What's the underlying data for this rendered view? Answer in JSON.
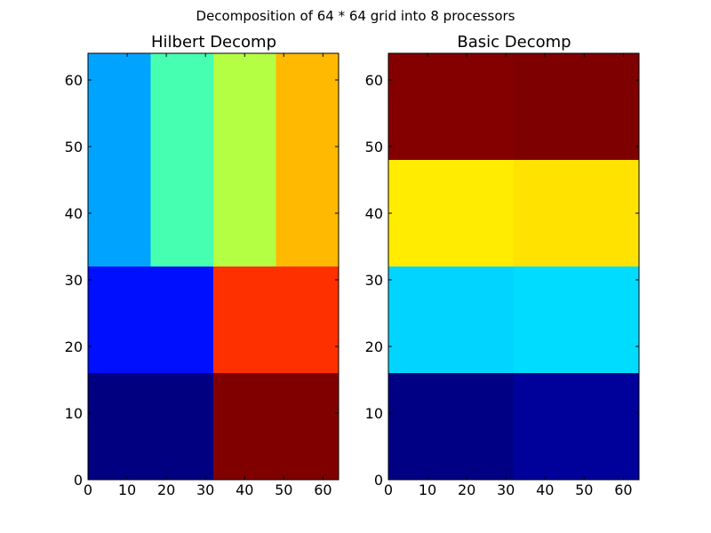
{
  "figure": {
    "suptitle": "Decomposition of 64 * 64 grid into 8 processors"
  },
  "chart_data": [
    {
      "type": "heatmap",
      "title": "Hilbert Decomp",
      "xlim": [
        0,
        64
      ],
      "ylim": [
        0,
        64
      ],
      "xticks": [
        "0",
        "10",
        "20",
        "30",
        "40",
        "50",
        "60"
      ],
      "yticks": [
        "0",
        "10",
        "20",
        "30",
        "40",
        "50",
        "60"
      ],
      "grid": false,
      "regions": [
        {
          "x": [
            0,
            32
          ],
          "y": [
            0,
            16
          ],
          "color": "#000080"
        },
        {
          "x": [
            32,
            64
          ],
          "y": [
            0,
            16
          ],
          "color": "#800000"
        },
        {
          "x": [
            0,
            32
          ],
          "y": [
            16,
            32
          ],
          "color": "#0010ff"
        },
        {
          "x": [
            32,
            64
          ],
          "y": [
            16,
            32
          ],
          "color": "#ff3000"
        },
        {
          "x": [
            0,
            16
          ],
          "y": [
            32,
            64
          ],
          "color": "#00a4ff"
        },
        {
          "x": [
            16,
            32
          ],
          "y": [
            32,
            64
          ],
          "color": "#46ffb1"
        },
        {
          "x": [
            32,
            48
          ],
          "y": [
            32,
            64
          ],
          "color": "#b4ff43"
        },
        {
          "x": [
            48,
            64
          ],
          "y": [
            32,
            64
          ],
          "color": "#ffb900"
        }
      ]
    },
    {
      "type": "heatmap",
      "title": "Basic Decomp",
      "xlim": [
        0,
        64
      ],
      "ylim": [
        0,
        64
      ],
      "xticks": [
        "0",
        "10",
        "20",
        "30",
        "40",
        "50",
        "60"
      ],
      "yticks": [
        "0",
        "10",
        "20",
        "30",
        "40",
        "50",
        "60"
      ],
      "grid": false,
      "regions": [
        {
          "x": [
            0,
            32
          ],
          "y": [
            0,
            16
          ],
          "color": "#000084"
        },
        {
          "x": [
            32,
            64
          ],
          "y": [
            0,
            16
          ],
          "color": "#00009a"
        },
        {
          "x": [
            0,
            32
          ],
          "y": [
            16,
            32
          ],
          "color": "#00d4ff"
        },
        {
          "x": [
            32,
            64
          ],
          "y": [
            16,
            32
          ],
          "color": "#00dcff"
        },
        {
          "x": [
            0,
            32
          ],
          "y": [
            32,
            48
          ],
          "color": "#ffec00"
        },
        {
          "x": [
            32,
            64
          ],
          "y": [
            32,
            48
          ],
          "color": "#ffe200"
        },
        {
          "x": [
            0,
            32
          ],
          "y": [
            48,
            64
          ],
          "color": "#840000"
        },
        {
          "x": [
            32,
            64
          ],
          "y": [
            48,
            64
          ],
          "color": "#7f0000"
        }
      ]
    }
  ]
}
